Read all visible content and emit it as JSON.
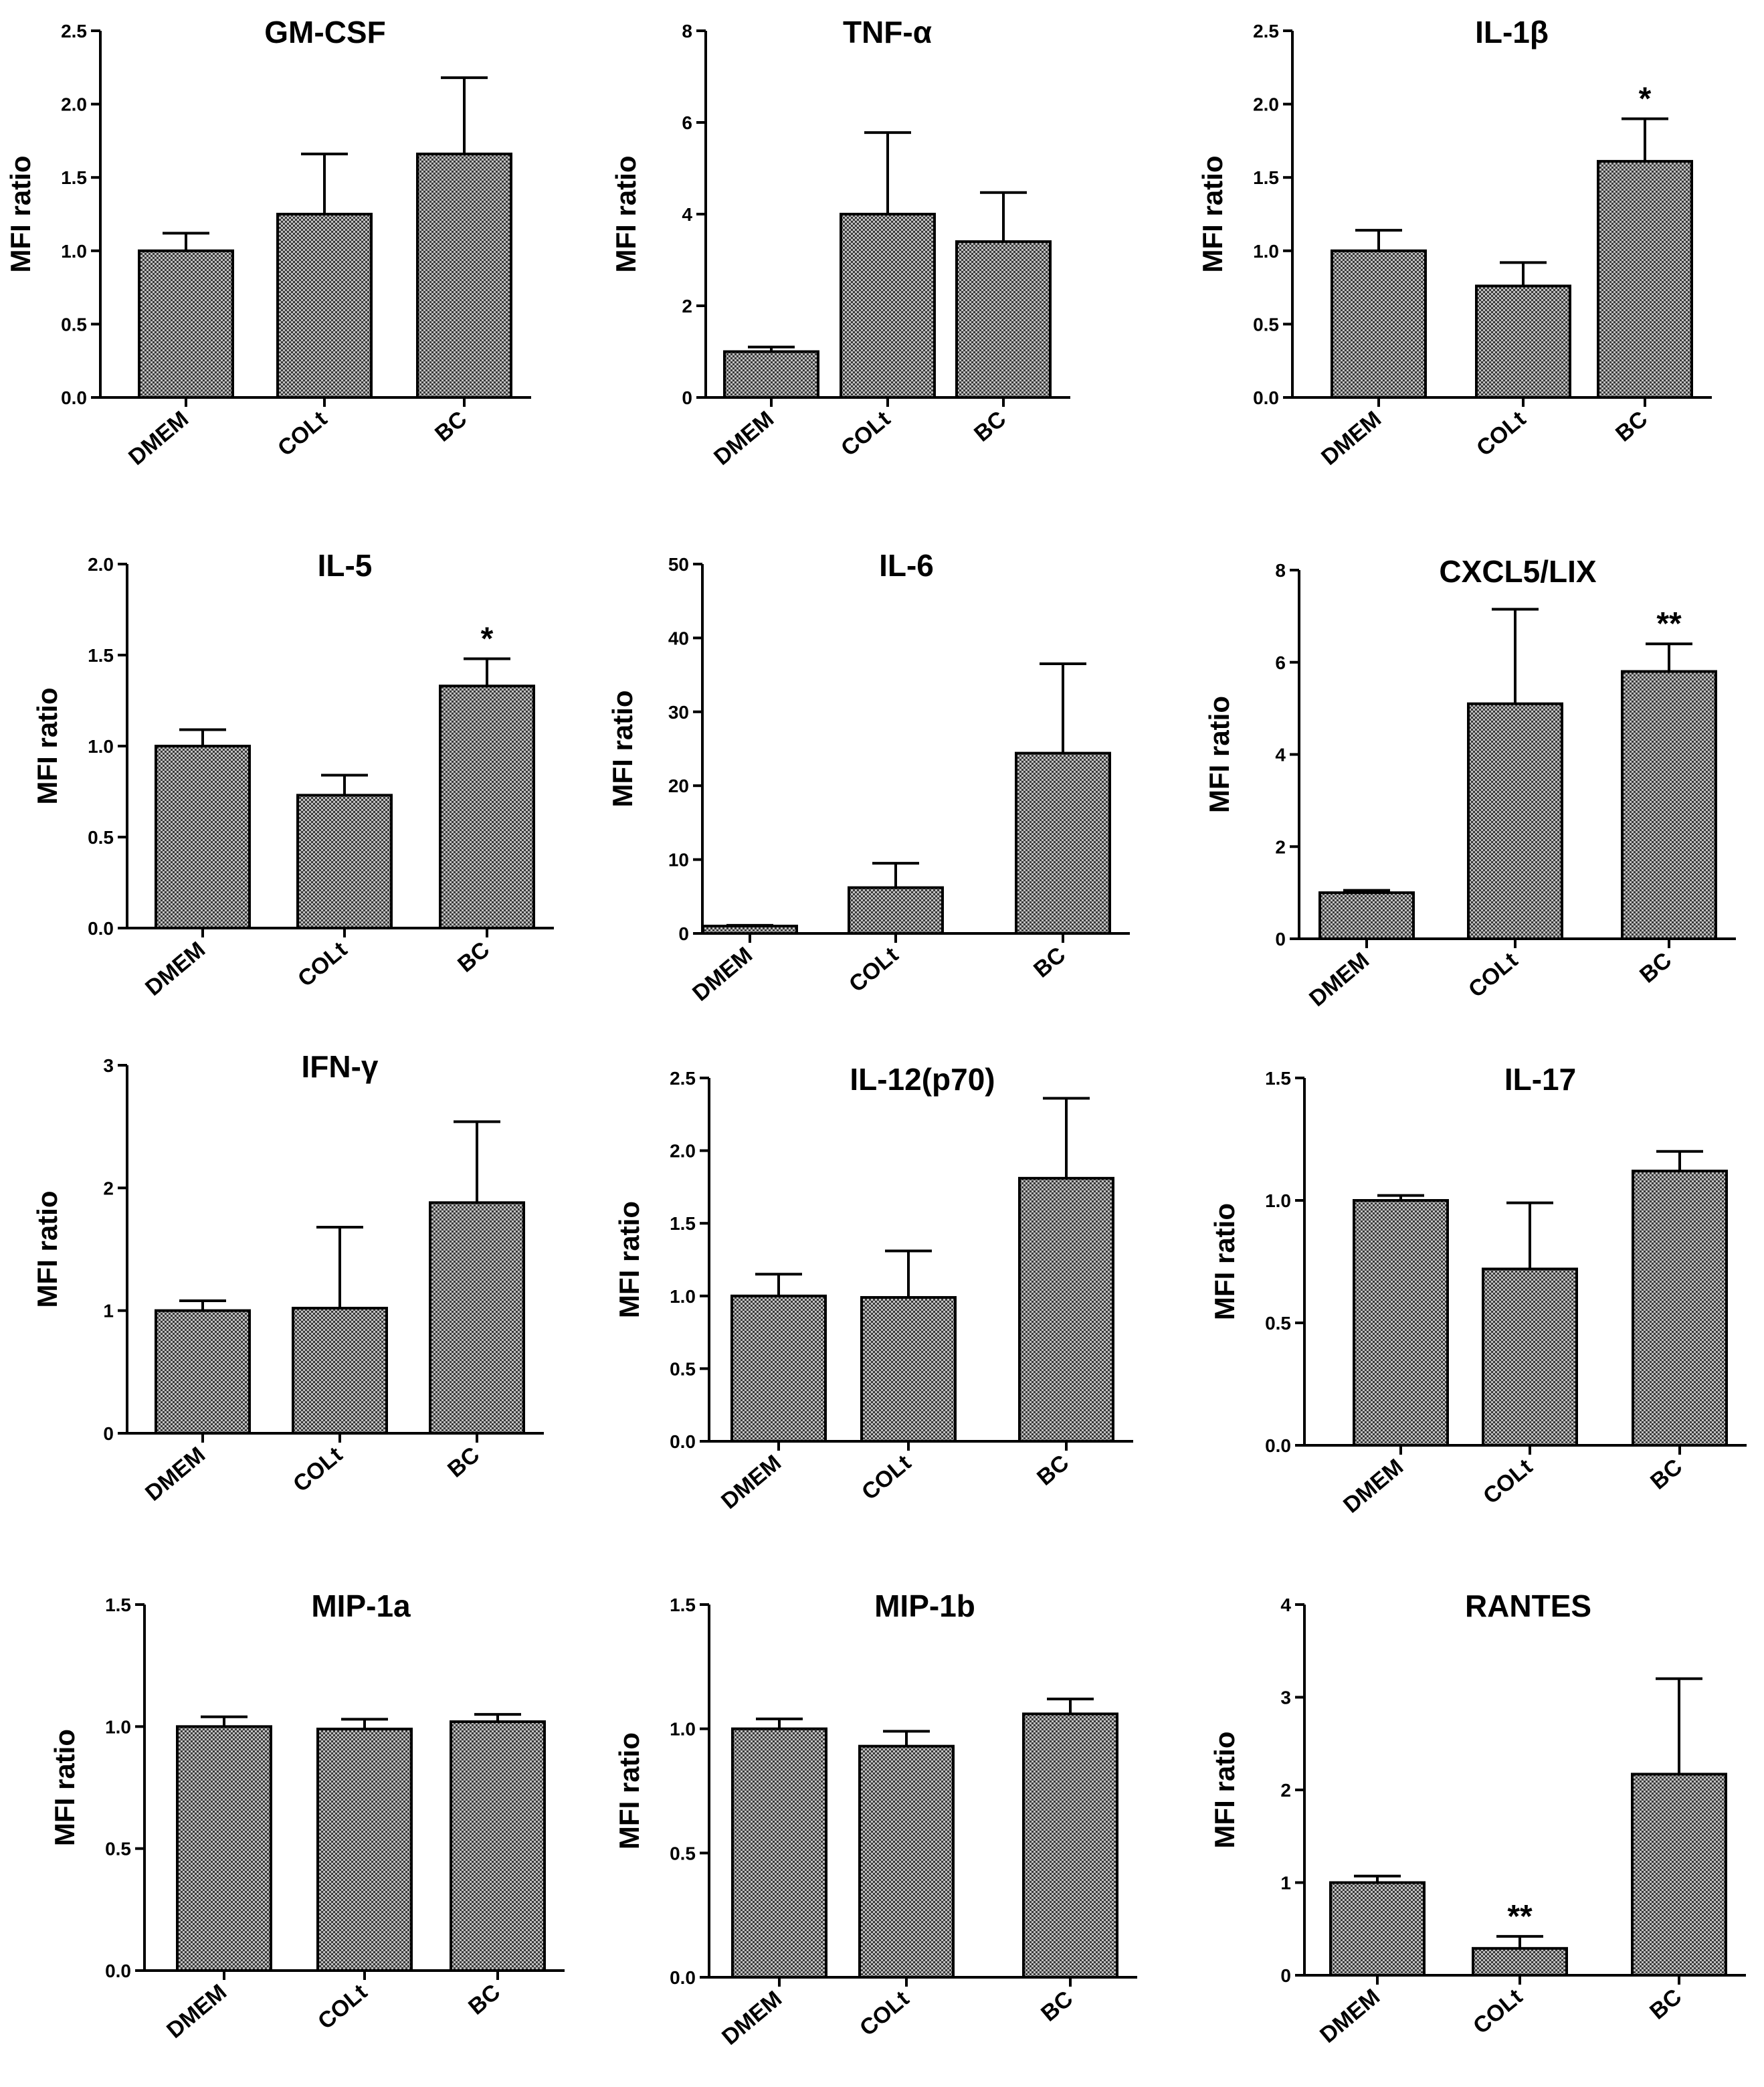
{
  "chart_data": [
    {
      "type": "bar",
      "title": "GM-CSF",
      "ylabel": "MFI ratio",
      "xlabel": "",
      "categories": [
        "DMEM",
        "COLt",
        "BC"
      ],
      "values": [
        1.0,
        1.25,
        1.66
      ],
      "errors": [
        0.12,
        0.41,
        0.52
      ],
      "significance": [
        "",
        "",
        ""
      ],
      "ylim": [
        0,
        2.5
      ],
      "yticks": [
        0.0,
        0.5,
        1.0,
        1.5,
        2.0,
        2.5
      ],
      "ytick_labels": [
        "0.0",
        "0.5",
        "1.0",
        "1.5",
        "2.0",
        "2.5"
      ]
    },
    {
      "type": "bar",
      "title": "TNF-α",
      "ylabel": "MFI ratio",
      "xlabel": "",
      "categories": [
        "DMEM",
        "COLt",
        "BC"
      ],
      "values": [
        1.0,
        4.0,
        3.4
      ],
      "errors": [
        0.1,
        1.78,
        1.07
      ],
      "significance": [
        "",
        "",
        ""
      ],
      "ylim": [
        0,
        8
      ],
      "yticks": [
        0,
        2,
        4,
        6,
        8
      ],
      "ytick_labels": [
        "0",
        "2",
        "4",
        "6",
        "8"
      ]
    },
    {
      "type": "bar",
      "title": "IL-1β",
      "ylabel": "MFI ratio",
      "xlabel": "",
      "categories": [
        "DMEM",
        "COLt",
        "BC"
      ],
      "values": [
        1.0,
        0.76,
        1.61
      ],
      "errors": [
        0.14,
        0.16,
        0.29
      ],
      "significance": [
        "",
        "",
        "*"
      ],
      "ylim": [
        0,
        2.5
      ],
      "yticks": [
        0.0,
        0.5,
        1.0,
        1.5,
        2.0,
        2.5
      ],
      "ytick_labels": [
        "0.0",
        "0.5",
        "1.0",
        "1.5",
        "2.0",
        "2.5"
      ]
    },
    {
      "type": "bar",
      "title": "IL-5",
      "ylabel": "MFI ratio",
      "xlabel": "",
      "categories": [
        "DMEM",
        "COLt",
        "BC"
      ],
      "values": [
        1.0,
        0.73,
        1.33
      ],
      "errors": [
        0.09,
        0.11,
        0.15
      ],
      "significance": [
        "",
        "",
        "*"
      ],
      "ylim": [
        0,
        2.0
      ],
      "yticks": [
        0.0,
        0.5,
        1.0,
        1.5,
        2.0
      ],
      "ytick_labels": [
        "0.0",
        "0.5",
        "1.0",
        "1.5",
        "2.0"
      ]
    },
    {
      "type": "bar",
      "title": "IL-6",
      "ylabel": "MFI ratio",
      "xlabel": "",
      "categories": [
        "DMEM",
        "COLt",
        "BC"
      ],
      "values": [
        1.0,
        6.2,
        24.4
      ],
      "errors": [
        0.1,
        3.3,
        12.1
      ],
      "significance": [
        "",
        "",
        ""
      ],
      "ylim": [
        0,
        50
      ],
      "yticks": [
        0,
        10,
        20,
        30,
        40,
        50
      ],
      "ytick_labels": [
        "0",
        "10",
        "20",
        "30",
        "40",
        "50"
      ]
    },
    {
      "type": "bar",
      "title": "CXCL5/LIX",
      "ylabel": "MFI ratio",
      "xlabel": "",
      "categories": [
        "DMEM",
        "COLt",
        "BC"
      ],
      "values": [
        1.0,
        5.1,
        5.8
      ],
      "errors": [
        0.05,
        2.05,
        0.6
      ],
      "significance": [
        "",
        "",
        "**"
      ],
      "ylim": [
        0,
        8
      ],
      "yticks": [
        0,
        2,
        4,
        6,
        8
      ],
      "ytick_labels": [
        "0",
        "2",
        "4",
        "6",
        "8"
      ]
    },
    {
      "type": "bar",
      "title": "IFN-γ",
      "ylabel": "MFI ratio",
      "xlabel": "",
      "categories": [
        "DMEM",
        "COLt",
        "BC"
      ],
      "values": [
        1.0,
        1.02,
        1.88
      ],
      "errors": [
        0.08,
        0.66,
        0.66
      ],
      "significance": [
        "",
        "",
        ""
      ],
      "ylim": [
        0,
        3
      ],
      "yticks": [
        0,
        1,
        2,
        3
      ],
      "ytick_labels": [
        "0",
        "1",
        "2",
        "3"
      ]
    },
    {
      "type": "bar",
      "title": "IL-12(p70)",
      "ylabel": "MFI ratio",
      "xlabel": "",
      "categories": [
        "DMEM",
        "COLt",
        "BC"
      ],
      "values": [
        1.0,
        0.99,
        1.81
      ],
      "errors": [
        0.15,
        0.32,
        0.55
      ],
      "significance": [
        "",
        "",
        ""
      ],
      "ylim": [
        0,
        2.5
      ],
      "yticks": [
        0.0,
        0.5,
        1.0,
        1.5,
        2.0,
        2.5
      ],
      "ytick_labels": [
        "0.0",
        "0.5",
        "1.0",
        "1.5",
        "2.0",
        "2.5"
      ]
    },
    {
      "type": "bar",
      "title": "IL-17",
      "ylabel": "MFI ratio",
      "xlabel": "",
      "categories": [
        "DMEM",
        "COLt",
        "BC"
      ],
      "values": [
        1.0,
        0.72,
        1.12
      ],
      "errors": [
        0.02,
        0.27,
        0.08
      ],
      "significance": [
        "",
        "",
        ""
      ],
      "ylim": [
        0,
        1.5
      ],
      "yticks": [
        0.0,
        0.5,
        1.0,
        1.5
      ],
      "ytick_labels": [
        "0.0",
        "0.5",
        "1.0",
        "1.5"
      ]
    },
    {
      "type": "bar",
      "title": "MIP-1a",
      "ylabel": "MFI ratio",
      "xlabel": "",
      "categories": [
        "DMEM",
        "COLt",
        "BC"
      ],
      "values": [
        1.0,
        0.99,
        1.02
      ],
      "errors": [
        0.04,
        0.04,
        0.03
      ],
      "significance": [
        "",
        "",
        ""
      ],
      "ylim": [
        0,
        1.5
      ],
      "yticks": [
        0.0,
        0.5,
        1.0,
        1.5
      ],
      "ytick_labels": [
        "0.0",
        "0.5",
        "1.0",
        "1.5"
      ]
    },
    {
      "type": "bar",
      "title": "MIP-1b",
      "ylabel": "MFI ratio",
      "xlabel": "",
      "categories": [
        "DMEM",
        "COLt",
        "BC"
      ],
      "values": [
        1.0,
        0.93,
        1.06
      ],
      "errors": [
        0.04,
        0.06,
        0.06
      ],
      "significance": [
        "",
        "",
        ""
      ],
      "ylim": [
        0,
        1.5
      ],
      "yticks": [
        0.0,
        0.5,
        1.0,
        1.5
      ],
      "ytick_labels": [
        "0.0",
        "0.5",
        "1.0",
        "1.5"
      ]
    },
    {
      "type": "bar",
      "title": "RANTES",
      "ylabel": "MFI ratio",
      "xlabel": "",
      "categories": [
        "DMEM",
        "COLt",
        "BC"
      ],
      "values": [
        1.0,
        0.29,
        2.17
      ],
      "errors": [
        0.07,
        0.13,
        1.03
      ],
      "significance": [
        "",
        "**",
        ""
      ],
      "ylim": [
        0,
        4
      ],
      "yticks": [
        0,
        1,
        2,
        3,
        4
      ],
      "ytick_labels": [
        "0",
        "1",
        "2",
        "3",
        "4"
      ]
    }
  ],
  "colors": {
    "bar_fill": "#b8b8b8",
    "bar_hatch": "#3a3a3a",
    "stroke": "#000000",
    "background": "#ffffff"
  }
}
